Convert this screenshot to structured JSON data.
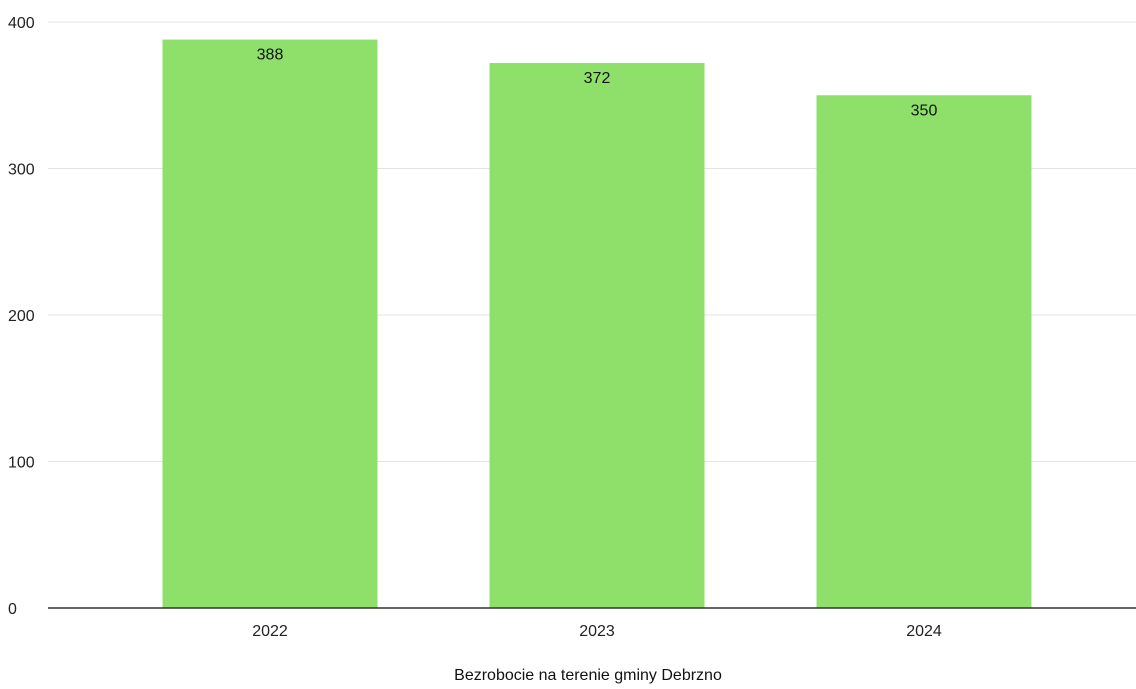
{
  "chart_data": {
    "type": "bar",
    "categories": [
      "2022",
      "2023",
      "2024"
    ],
    "values": [
      388,
      372,
      350
    ],
    "data_labels": [
      "388",
      "372",
      "350"
    ],
    "title": "",
    "xlabel": "Bezrobocie na terenie gminy Debrzno",
    "ylabel": "",
    "ylim": [
      0,
      400
    ],
    "yticks": [
      "0",
      "100",
      "200",
      "300",
      "400"
    ],
    "grid": true,
    "legend": "none",
    "bar_color": "#8fe06b",
    "grid_color": "#e3e3e3",
    "axis_color": "#333333"
  }
}
